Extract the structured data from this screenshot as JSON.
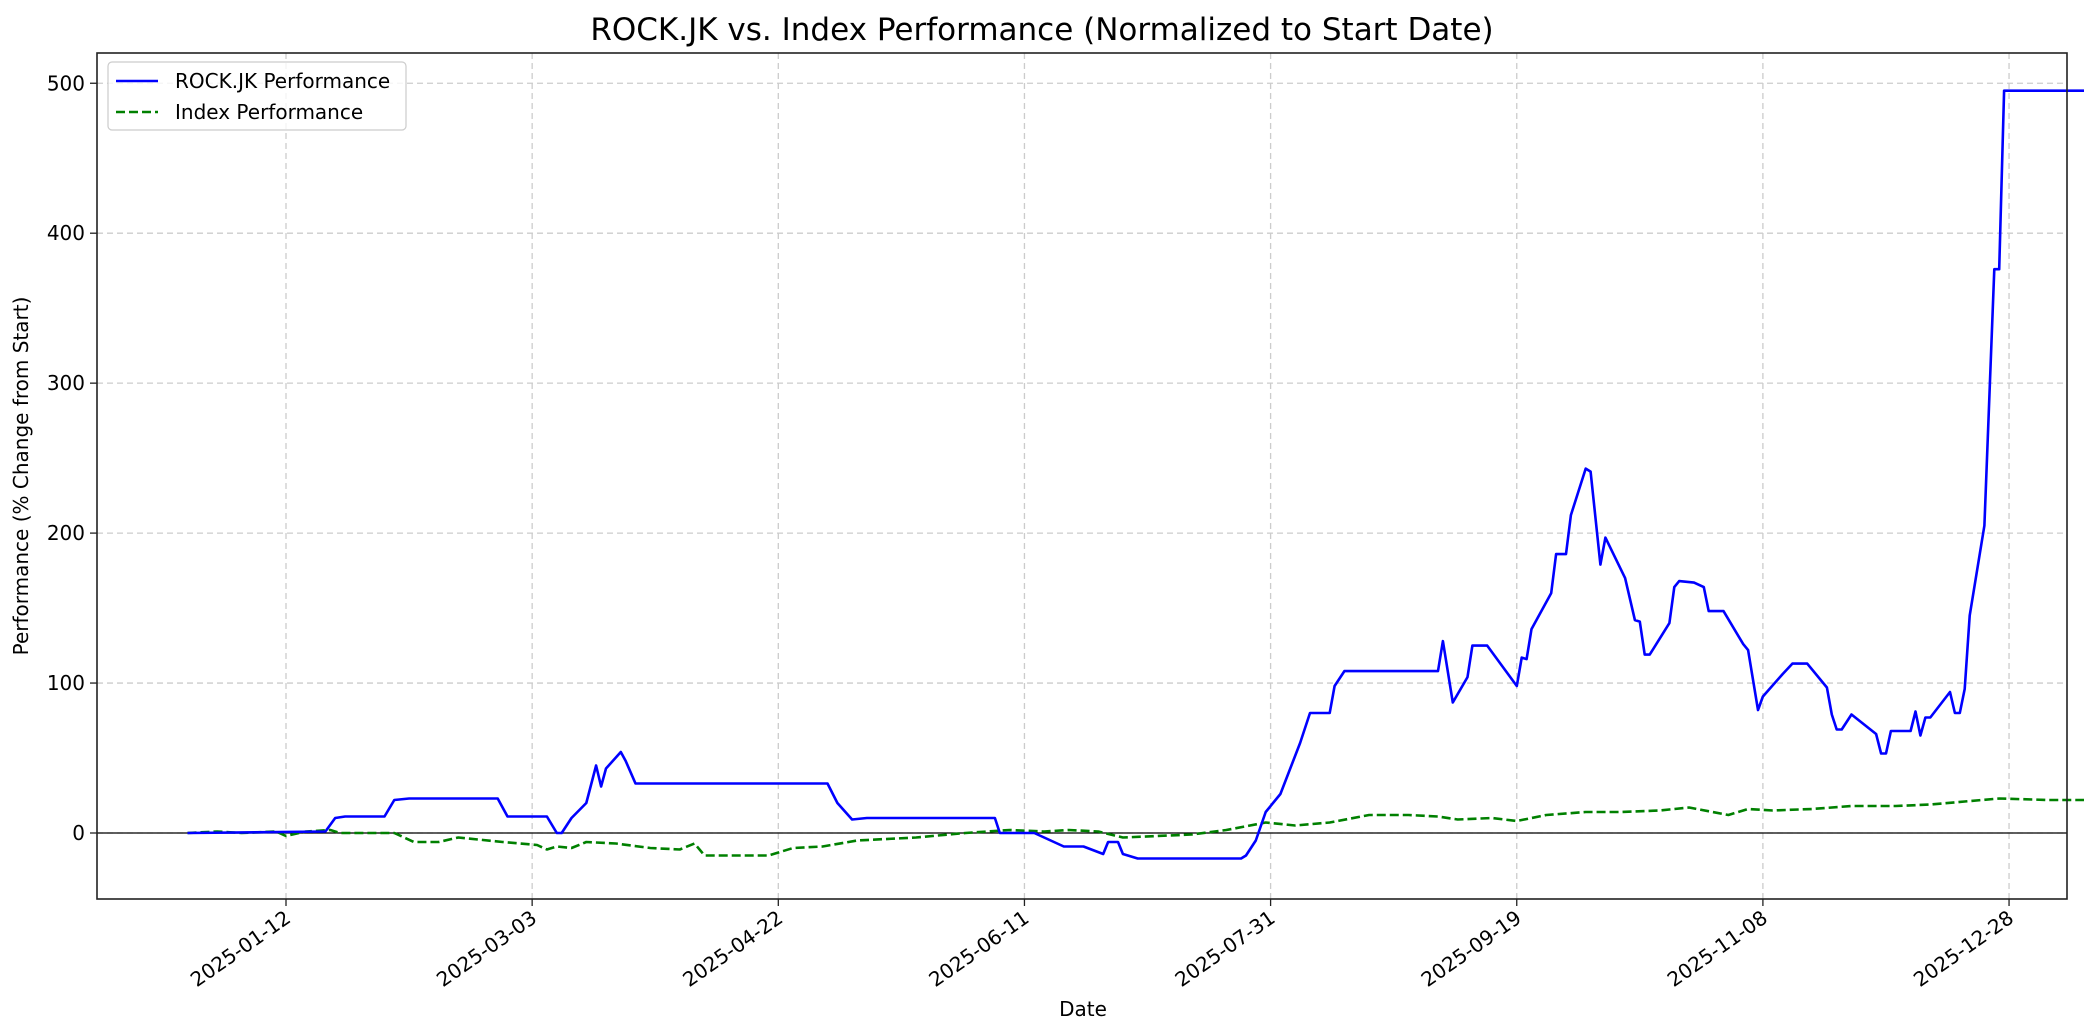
{
  "chart_data": {
    "type": "line",
    "title": "ROCK.JK vs. Index Performance (Normalized to Start Date)",
    "xlabel": "Date",
    "ylabel": "Performance (% Change from Start)",
    "ylim": [
      -44,
      522
    ],
    "xlim": [
      "2024-12-12",
      "2026-01-08"
    ],
    "grid": true,
    "legend_position": "upper left",
    "x_ticks": [
      "2025-01-12",
      "2025-03-03",
      "2025-04-22",
      "2025-06-11",
      "2025-07-31",
      "2025-09-19",
      "2025-11-08",
      "2025-12-28"
    ],
    "y_ticks": [
      0,
      100,
      200,
      300,
      400,
      500
    ],
    "reference_line": {
      "y": 0,
      "color": "#000000"
    },
    "series": [
      {
        "name": "ROCK.JK Performance",
        "color": "#0000ff",
        "style": "solid",
        "points": [
          [
            "2024-12-23",
            0
          ],
          [
            "2025-01-20",
            1
          ],
          [
            "2025-01-22",
            10
          ],
          [
            "2025-01-24",
            11
          ],
          [
            "2025-02-01",
            11
          ],
          [
            "2025-02-03",
            22
          ],
          [
            "2025-02-06",
            23
          ],
          [
            "2025-02-24",
            23
          ],
          [
            "2025-02-26",
            11
          ],
          [
            "2025-03-06",
            11
          ],
          [
            "2025-03-08",
            0
          ],
          [
            "2025-03-09",
            0
          ],
          [
            "2025-03-11",
            10
          ],
          [
            "2025-03-14",
            20
          ],
          [
            "2025-03-16",
            45
          ],
          [
            "2025-03-17",
            31
          ],
          [
            "2025-03-18",
            43
          ],
          [
            "2025-03-21",
            54
          ],
          [
            "2025-03-22",
            48
          ],
          [
            "2025-03-24",
            33
          ],
          [
            "2025-05-02",
            33
          ],
          [
            "2025-05-04",
            20
          ],
          [
            "2025-05-07",
            9
          ],
          [
            "2025-05-10",
            10
          ],
          [
            "2025-06-05",
            10
          ],
          [
            "2025-06-06",
            0
          ],
          [
            "2025-06-13",
            0
          ],
          [
            "2025-06-19",
            -9
          ],
          [
            "2025-06-23",
            -9
          ],
          [
            "2025-06-27",
            -14
          ],
          [
            "2025-06-28",
            -6
          ],
          [
            "2025-06-30",
            -6
          ],
          [
            "2025-07-01",
            -14
          ],
          [
            "2025-07-04",
            -17
          ],
          [
            "2025-07-23",
            -17
          ],
          [
            "2025-07-25",
            -17
          ],
          [
            "2025-07-26",
            -15
          ],
          [
            "2025-07-28",
            -5
          ],
          [
            "2025-07-30",
            14
          ],
          [
            "2025-08-02",
            26
          ],
          [
            "2025-08-06",
            60
          ],
          [
            "2025-08-08",
            80
          ],
          [
            "2025-08-12",
            80
          ],
          [
            "2025-08-13",
            98
          ],
          [
            "2025-08-15",
            108
          ],
          [
            "2025-09-03",
            108
          ],
          [
            "2025-09-04",
            128
          ],
          [
            "2025-09-06",
            87
          ],
          [
            "2025-09-09",
            104
          ],
          [
            "2025-09-10",
            125
          ],
          [
            "2025-09-13",
            125
          ],
          [
            "2025-09-19",
            98
          ],
          [
            "2025-09-20",
            117
          ],
          [
            "2025-09-21",
            116
          ],
          [
            "2025-09-22",
            136
          ],
          [
            "2025-09-26",
            160
          ],
          [
            "2025-09-27",
            186
          ],
          [
            "2025-09-29",
            186
          ],
          [
            "2025-09-30",
            212
          ],
          [
            "2025-10-03",
            243
          ],
          [
            "2025-10-04",
            241
          ],
          [
            "2025-10-06",
            179
          ],
          [
            "2025-10-07",
            197
          ],
          [
            "2025-10-11",
            170
          ],
          [
            "2025-10-13",
            142
          ],
          [
            "2025-10-14",
            141
          ],
          [
            "2025-10-15",
            119
          ],
          [
            "2025-10-16",
            119
          ],
          [
            "2025-10-20",
            140
          ],
          [
            "2025-10-21",
            164
          ],
          [
            "2025-10-22",
            168
          ],
          [
            "2025-10-25",
            167
          ],
          [
            "2025-10-27",
            164
          ],
          [
            "2025-10-28",
            148
          ],
          [
            "2025-10-31",
            148
          ],
          [
            "2025-11-04",
            126
          ],
          [
            "2025-11-05",
            122
          ],
          [
            "2025-11-07",
            82
          ],
          [
            "2025-11-08",
            91
          ],
          [
            "2025-11-12",
            106
          ],
          [
            "2025-11-14",
            113
          ],
          [
            "2025-11-17",
            113
          ],
          [
            "2025-11-21",
            97
          ],
          [
            "2025-11-22",
            79
          ],
          [
            "2025-11-23",
            69
          ],
          [
            "2025-11-24",
            69
          ],
          [
            "2025-11-26",
            79
          ],
          [
            "2025-12-01",
            66
          ],
          [
            "2025-12-02",
            53
          ],
          [
            "2025-12-03",
            53
          ],
          [
            "2025-12-04",
            68
          ],
          [
            "2025-12-08",
            68
          ],
          [
            "2025-12-09",
            81
          ],
          [
            "2025-12-10",
            65
          ],
          [
            "2025-12-11",
            77
          ],
          [
            "2025-12-12",
            77
          ],
          [
            "2025-12-16",
            94
          ],
          [
            "2025-12-17",
            80
          ],
          [
            "2025-12-18",
            80
          ],
          [
            "2025-12-19",
            96
          ],
          [
            "2025-12-20",
            145
          ],
          [
            "2025-12-23",
            205
          ],
          [
            "2025-12-25",
            376
          ],
          [
            "2025-12-26",
            376
          ],
          [
            "2025-12-27",
            495
          ],
          [
            "2026-01-19",
            495
          ]
        ]
      },
      {
        "name": "Index Performance",
        "color": "#008000",
        "style": "dashed",
        "points": [
          [
            "2024-12-23",
            0
          ],
          [
            "2024-12-29",
            1
          ],
          [
            "2025-01-03",
            0
          ],
          [
            "2025-01-10",
            1
          ],
          [
            "2025-01-12",
            -2
          ],
          [
            "2025-01-16",
            1
          ],
          [
            "2025-01-21",
            2
          ],
          [
            "2025-01-23",
            0
          ],
          [
            "2025-02-03",
            0
          ],
          [
            "2025-02-07",
            -6
          ],
          [
            "2025-02-12",
            -6
          ],
          [
            "2025-02-16",
            -3
          ],
          [
            "2025-02-25",
            -6
          ],
          [
            "2025-03-04",
            -8
          ],
          [
            "2025-03-06",
            -11
          ],
          [
            "2025-03-08",
            -9
          ],
          [
            "2025-03-11",
            -10
          ],
          [
            "2025-03-14",
            -6
          ],
          [
            "2025-03-20",
            -7
          ],
          [
            "2025-03-27",
            -10
          ],
          [
            "2025-04-02",
            -11
          ],
          [
            "2025-04-05",
            -7
          ],
          [
            "2025-04-07",
            -15
          ],
          [
            "2025-04-20",
            -15
          ],
          [
            "2025-04-25",
            -10
          ],
          [
            "2025-05-01",
            -9
          ],
          [
            "2025-05-08",
            -5
          ],
          [
            "2025-05-20",
            -3
          ],
          [
            "2025-05-30",
            0
          ],
          [
            "2025-06-08",
            2
          ],
          [
            "2025-06-15",
            1
          ],
          [
            "2025-06-20",
            2
          ],
          [
            "2025-06-26",
            1
          ],
          [
            "2025-07-01",
            -3
          ],
          [
            "2025-07-08",
            -2
          ],
          [
            "2025-07-15",
            -1
          ],
          [
            "2025-07-22",
            2
          ],
          [
            "2025-07-30",
            7
          ],
          [
            "2025-08-05",
            5
          ],
          [
            "2025-08-12",
            7
          ],
          [
            "2025-08-20",
            12
          ],
          [
            "2025-08-28",
            12
          ],
          [
            "2025-09-03",
            11
          ],
          [
            "2025-09-07",
            9
          ],
          [
            "2025-09-14",
            10
          ],
          [
            "2025-09-19",
            8
          ],
          [
            "2025-09-25",
            12
          ],
          [
            "2025-10-03",
            14
          ],
          [
            "2025-10-10",
            14
          ],
          [
            "2025-10-18",
            15
          ],
          [
            "2025-10-24",
            17
          ],
          [
            "2025-11-01",
            12
          ],
          [
            "2025-11-05",
            16
          ],
          [
            "2025-11-10",
            15
          ],
          [
            "2025-11-18",
            16
          ],
          [
            "2025-11-26",
            18
          ],
          [
            "2025-12-05",
            18
          ],
          [
            "2025-12-12",
            19
          ],
          [
            "2025-12-19",
            21
          ],
          [
            "2025-12-26",
            23
          ],
          [
            "2026-01-05",
            22
          ],
          [
            "2026-01-19",
            22
          ]
        ]
      }
    ]
  }
}
